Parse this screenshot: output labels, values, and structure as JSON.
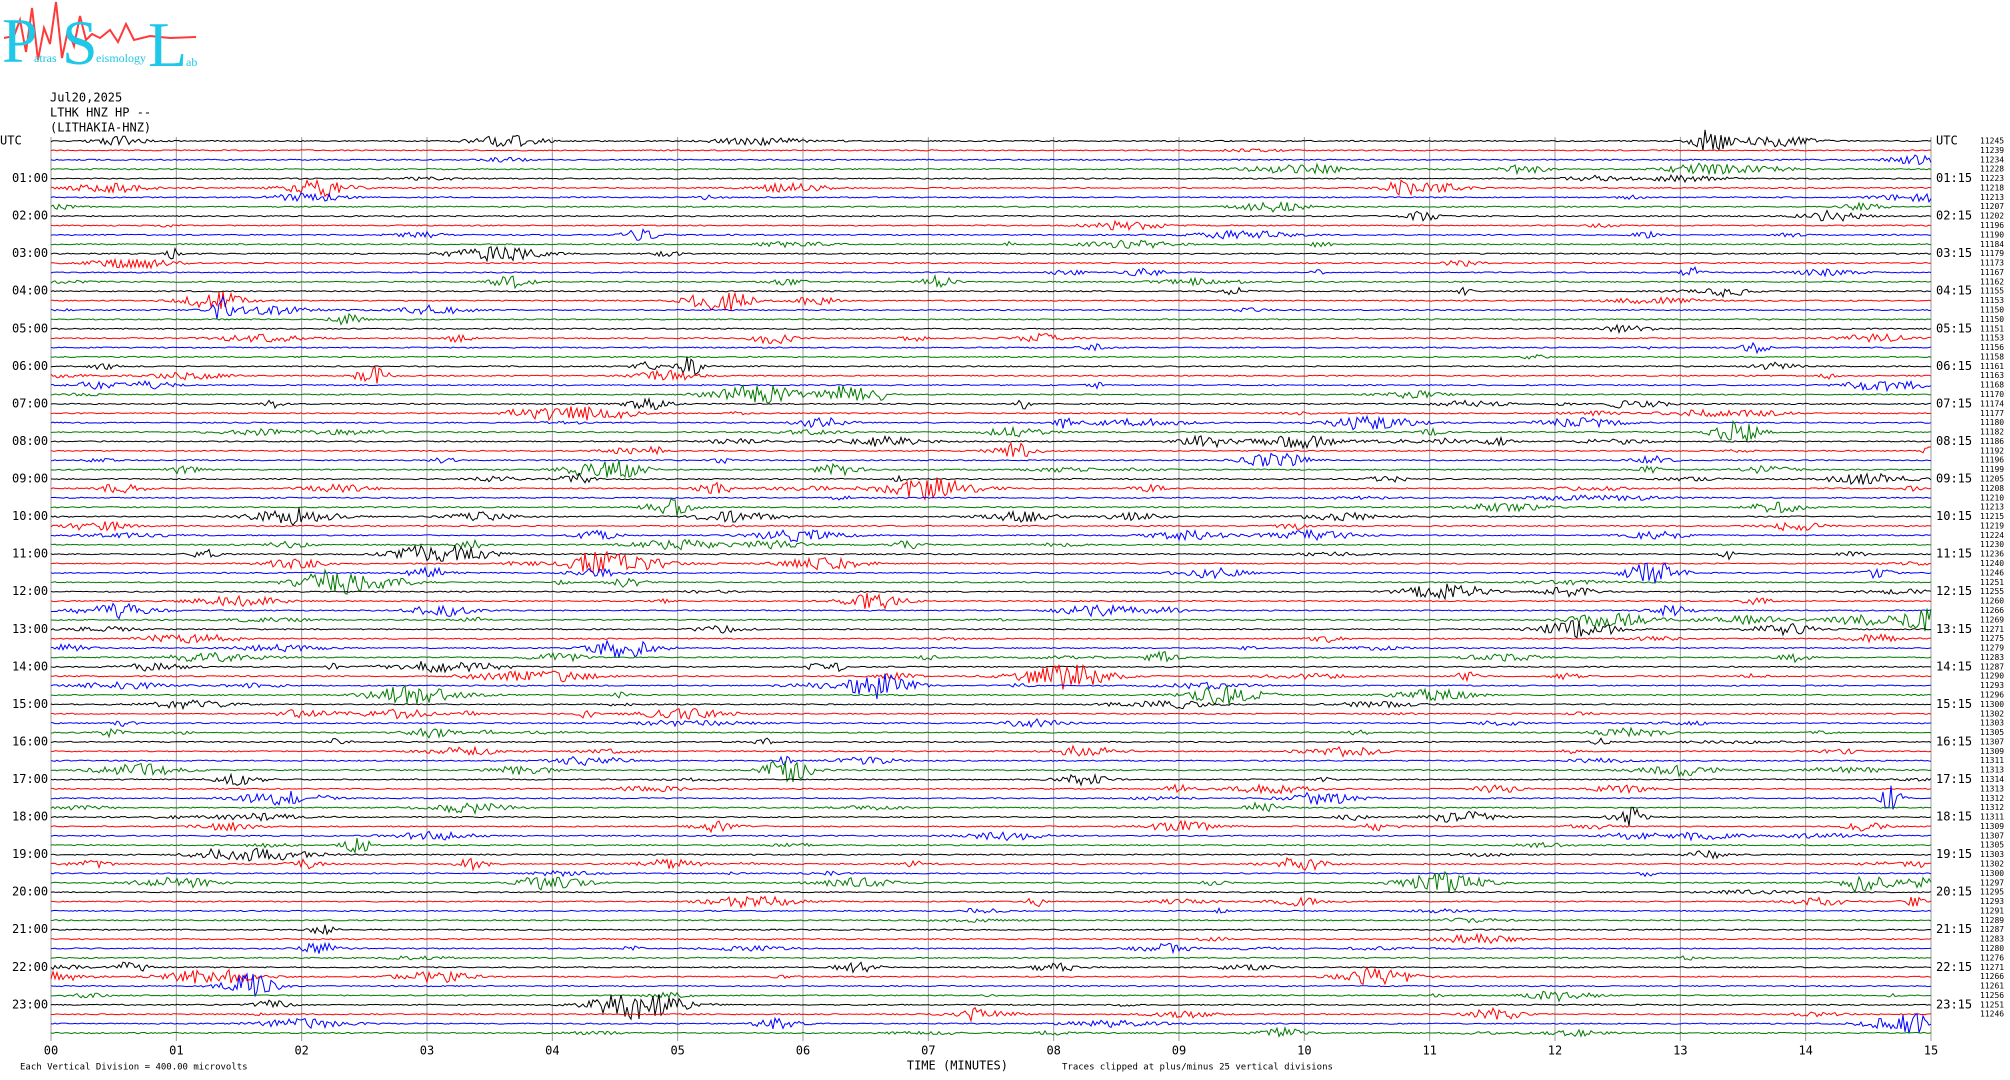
{
  "logo": {
    "letters": [
      "P",
      "S",
      "L"
    ],
    "words": [
      "atras",
      "eismology",
      "ab"
    ]
  },
  "header": {
    "date": "Jul20,2025",
    "station": "LTHK HNZ HP --",
    "site": "(LITHAKIA-HNZ)"
  },
  "left_labels": [
    "UTC",
    "01:00",
    "02:00",
    "03:00",
    "04:00",
    "05:00",
    "06:00",
    "07:00",
    "08:00",
    "09:00",
    "10:00",
    "11:00",
    "12:00",
    "13:00",
    "14:00",
    "15:00",
    "16:00",
    "17:00",
    "18:00",
    "19:00",
    "20:00",
    "21:00",
    "22:00",
    "23:00"
  ],
  "right_labels": [
    "UTC",
    "01:15",
    "02:15",
    "03:15",
    "04:15",
    "05:15",
    "06:15",
    "07:15",
    "08:15",
    "09:15",
    "10:15",
    "11:15",
    "12:15",
    "13:15",
    "14:15",
    "15:15",
    "16:15",
    "17:15",
    "18:15",
    "19:15",
    "20:15",
    "21:15",
    "22:15",
    "23:15"
  ],
  "row_counts": [
    "11245",
    "11239",
    "11234",
    "11228",
    "11223",
    "11218",
    "11213",
    "11207",
    "11202",
    "11196",
    "11190",
    "11184",
    "11179",
    "11173",
    "11167",
    "11162",
    "11155",
    "11153",
    "11150",
    "11150",
    "11151",
    "11153",
    "11156",
    "11158",
    "11161",
    "11163",
    "11168",
    "11170",
    "11174",
    "11177",
    "11180",
    "11182",
    "11186",
    "11192",
    "11196",
    "11199",
    "11205",
    "11208",
    "11210",
    "11213",
    "11215",
    "11219",
    "11224",
    "11230",
    "11236",
    "11240",
    "11246",
    "11251",
    "11255",
    "11260",
    "11266",
    "11269",
    "11271",
    "11275",
    "11279",
    "11283",
    "11287",
    "11290",
    "11293",
    "11296",
    "11300",
    "11302",
    "11303",
    "11305",
    "11307",
    "11309",
    "11311",
    "11313",
    "11314",
    "11313",
    "11312",
    "11312",
    "11311",
    "11309",
    "11307",
    "11305",
    "11303",
    "11302",
    "11300",
    "11297",
    "11295",
    "11293",
    "11291",
    "11289",
    "11287",
    "11283",
    "11280",
    "11276",
    "11271",
    "11266",
    "11261",
    "11256",
    "11251",
    "11246"
  ],
  "x_labels": [
    "00",
    "01",
    "02",
    "03",
    "04",
    "05",
    "06",
    "07",
    "08",
    "09",
    "10",
    "11",
    "12",
    "13",
    "14",
    "15"
  ],
  "footer": {
    "scale": "Each Vertical Division =  400.00 microvolts",
    "x_title": "TIME (MINUTES)",
    "clip": "Traces clipped at plus/minus 25 vertical divisions"
  },
  "trace_colors": [
    "#000000",
    "#ff0000",
    "#0000ff",
    "#007a00"
  ]
}
